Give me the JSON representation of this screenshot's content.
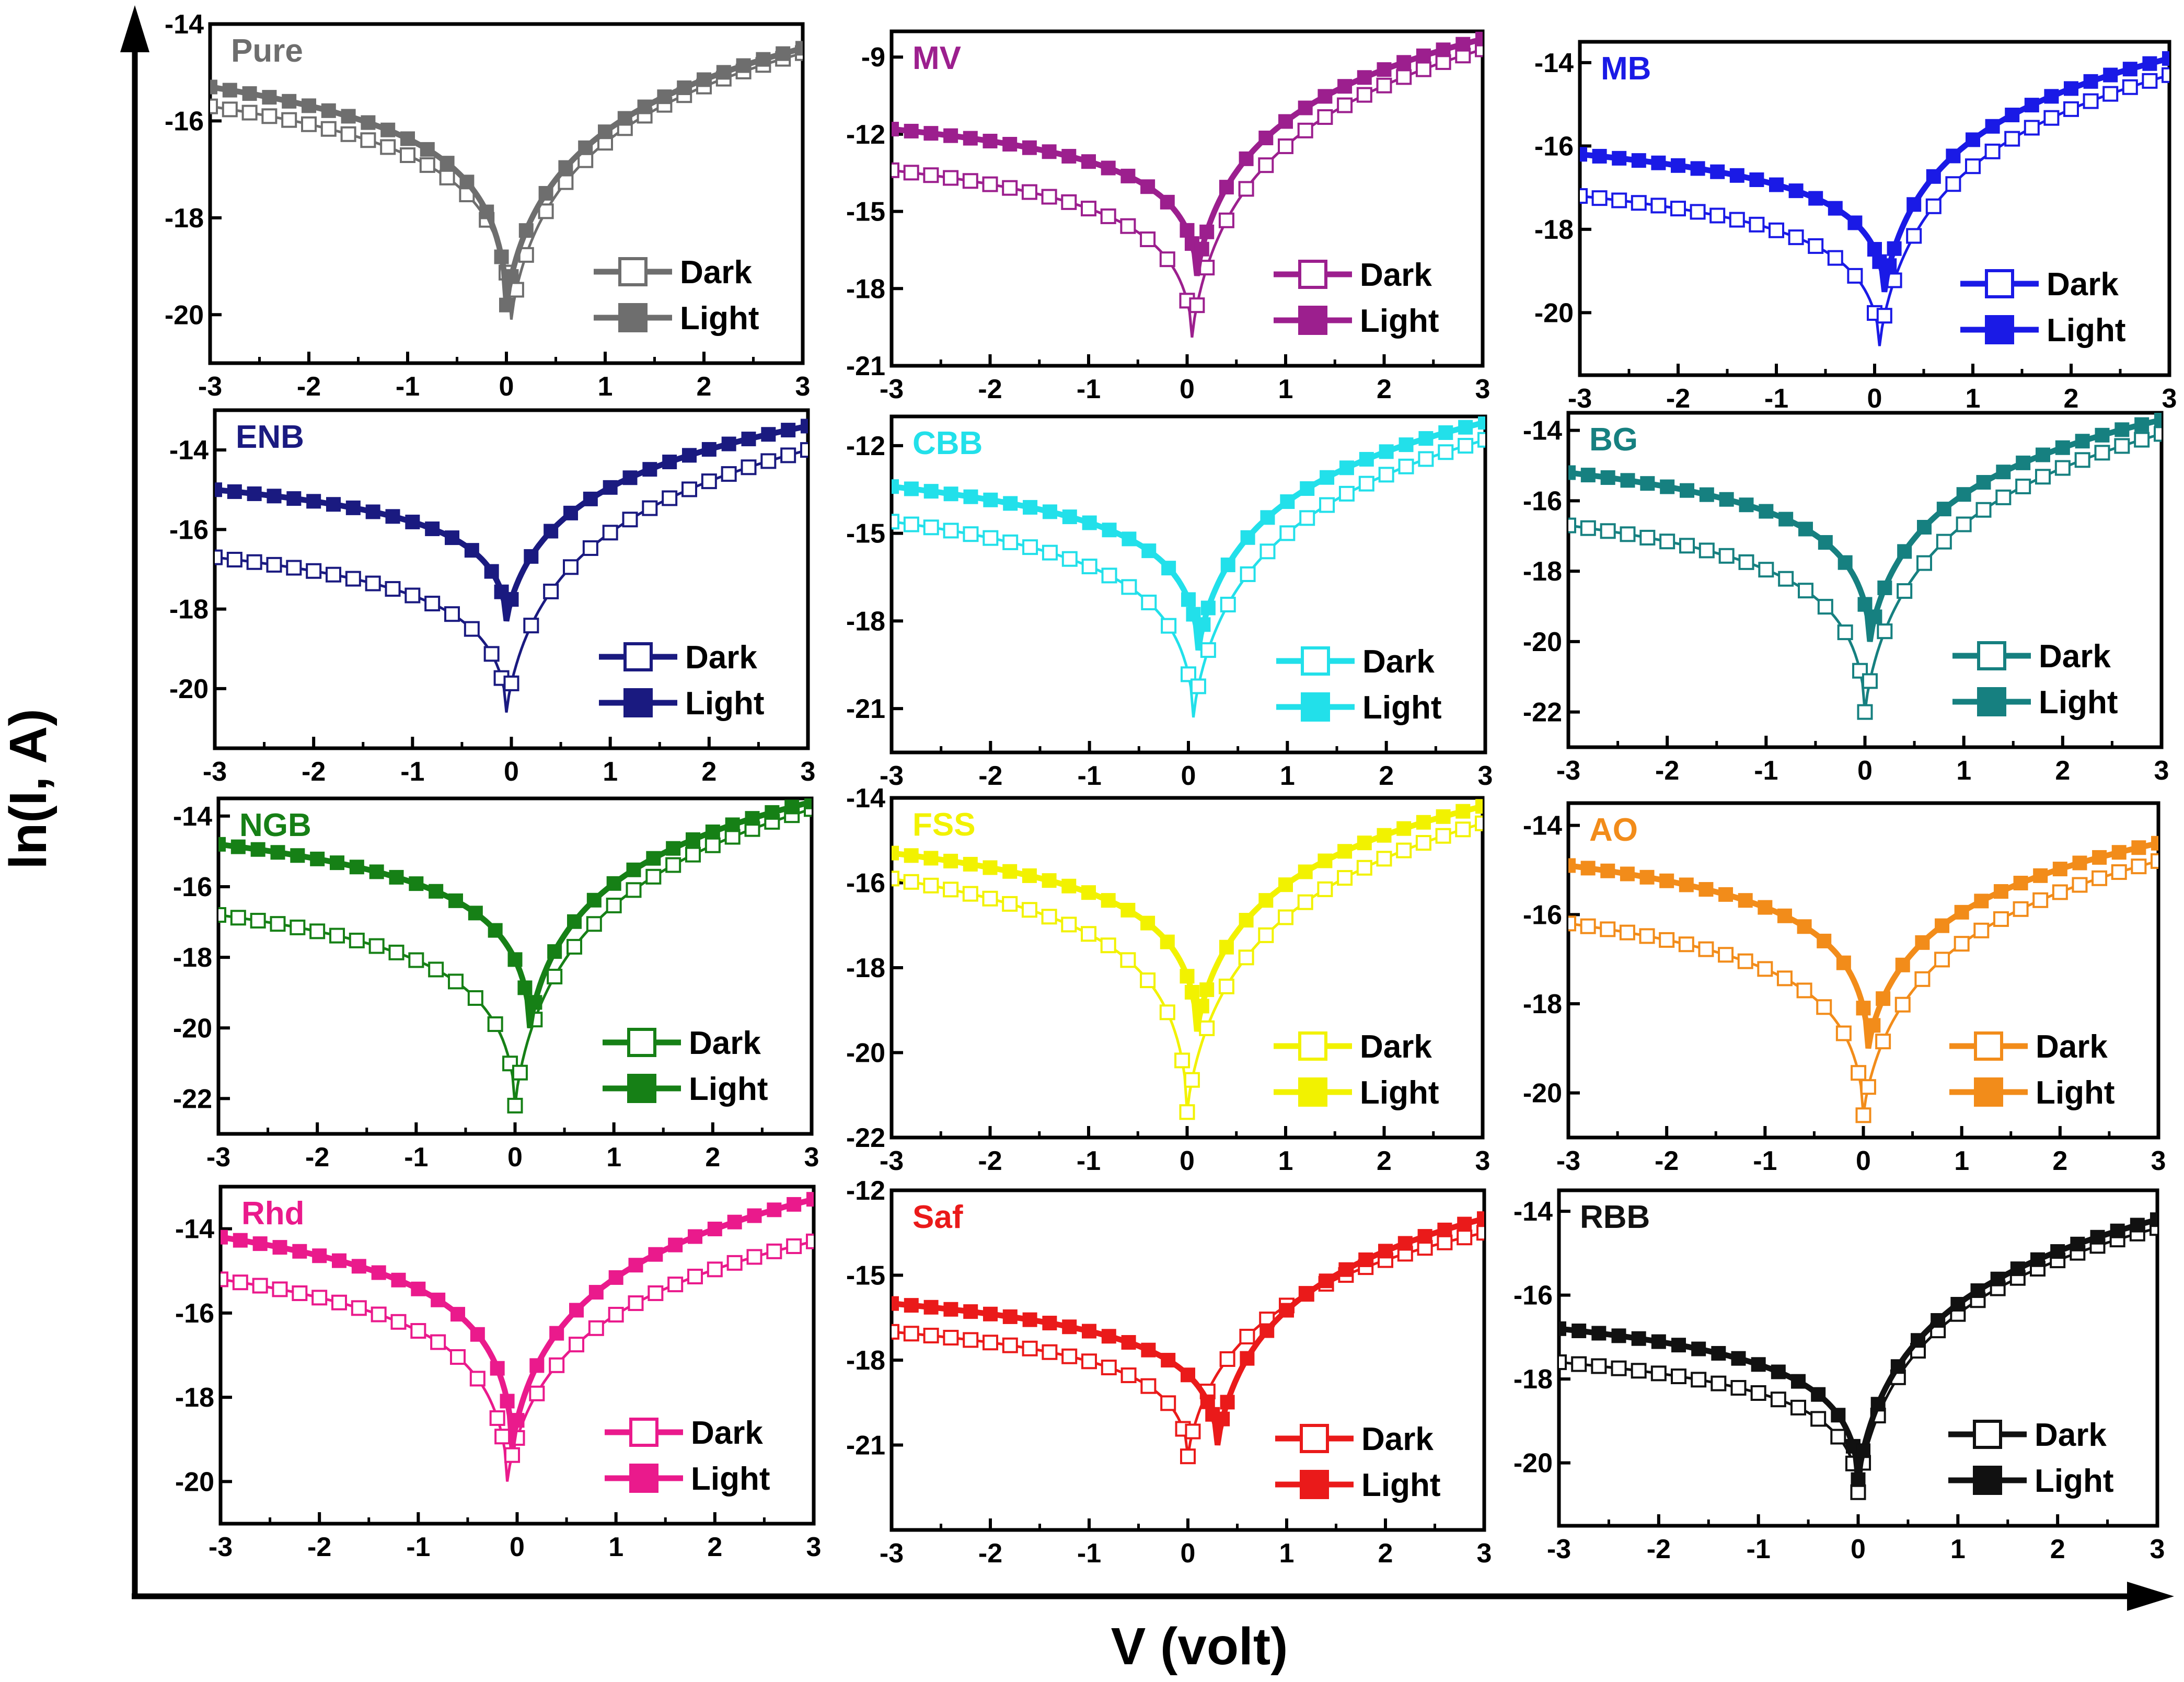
{
  "figure": {
    "xlabel": "V (volt)",
    "ylabel": "ln(I, A)"
  },
  "chart_data": [
    {
      "type": "line",
      "title": "Pure",
      "color": "#6e6e6e",
      "xlim": [
        -3,
        3
      ],
      "ylim": [
        -21,
        -14
      ],
      "yticks": [
        -20,
        -18,
        -16,
        -14
      ],
      "xticks": [
        -3,
        -2,
        -1,
        0,
        1,
        2,
        3
      ],
      "xlabel": "V (volt)",
      "ylabel": "ln(I, A)",
      "legend": "bottom-right",
      "series": [
        {
          "name": "Dark",
          "marker": "open-square",
          "v0": 0.05,
          "ymin": -20.1,
          "yleft": -15.7,
          "yright": -14.6
        },
        {
          "name": "Light",
          "marker": "filled-square",
          "v0": 0.0,
          "ymin": -19.8,
          "yleft": -15.3,
          "yright": -14.5
        }
      ]
    },
    {
      "type": "line",
      "title": "MV",
      "color": "#9c1f8e",
      "xlim": [
        -3,
        3
      ],
      "ylim": [
        -21,
        -8
      ],
      "yticks": [
        -21,
        -18,
        -15,
        -12,
        -9
      ],
      "xticks": [
        -3,
        -2,
        -1,
        0,
        1,
        2,
        3
      ],
      "xlabel": "V (volt)",
      "ylabel": "ln(I, A)",
      "legend": "bottom-right",
      "series": [
        {
          "name": "Dark",
          "marker": "open-square",
          "v0": 0.05,
          "ymin": -19.9,
          "yleft": -13.4,
          "yright": -8.7
        },
        {
          "name": "Light",
          "marker": "filled-square",
          "v0": 0.1,
          "ymin": -17.5,
          "yleft": -11.8,
          "yright": -8.3
        }
      ]
    },
    {
      "type": "line",
      "title": "MB",
      "color": "#1a1ae6",
      "xlim": [
        -3,
        3
      ],
      "ylim": [
        -21.5,
        -13.5
      ],
      "yticks": [
        -20,
        -18,
        -16,
        -14
      ],
      "xticks": [
        -3,
        -2,
        -1,
        0,
        1,
        2,
        3
      ],
      "xlabel": "V (volt)",
      "ylabel": "ln(I, A)",
      "legend": "bottom-right",
      "series": [
        {
          "name": "Dark",
          "marker": "open-square",
          "v0": 0.05,
          "ymin": -20.8,
          "yleft": -17.2,
          "yright": -14.3
        },
        {
          "name": "Light",
          "marker": "filled-square",
          "v0": 0.1,
          "ymin": -19.5,
          "yleft": -16.2,
          "yright": -13.9
        }
      ]
    },
    {
      "type": "line",
      "title": "ENB",
      "color": "#1a1a80",
      "xlim": [
        -3,
        3
      ],
      "ylim": [
        -21.5,
        -13
      ],
      "yticks": [
        -20,
        -18,
        -16,
        -14
      ],
      "xticks": [
        -3,
        -2,
        -1,
        0,
        1,
        2,
        3
      ],
      "xlabel": "V (volt)",
      "ylabel": "ln(I, A)",
      "legend": "bottom-right",
      "series": [
        {
          "name": "Dark",
          "marker": "open-square",
          "v0": -0.05,
          "ymin": -20.6,
          "yleft": -16.7,
          "yright": -14.0
        },
        {
          "name": "Light",
          "marker": "filled-square",
          "v0": -0.05,
          "ymin": -18.3,
          "yleft": -15.0,
          "yright": -13.4
        }
      ]
    },
    {
      "type": "line",
      "title": "CBB",
      "color": "#22e0ea",
      "xlim": [
        -3,
        3
      ],
      "ylim": [
        -22.5,
        -11
      ],
      "yticks": [
        -21,
        -18,
        -15,
        -12
      ],
      "xticks": [
        -3,
        -2,
        -1,
        0,
        1,
        2,
        3
      ],
      "xlabel": "V (volt)",
      "ylabel": "ln(I, A)",
      "legend": "bottom-right",
      "series": [
        {
          "name": "Dark",
          "marker": "open-square",
          "v0": 0.05,
          "ymin": -21.3,
          "yleft": -14.6,
          "yright": -11.8
        },
        {
          "name": "Light",
          "marker": "filled-square",
          "v0": 0.1,
          "ymin": -19.0,
          "yleft": -13.4,
          "yright": -11.2
        }
      ]
    },
    {
      "type": "line",
      "title": "BG",
      "color": "#168080",
      "xlim": [
        -3,
        3
      ],
      "ylim": [
        -23,
        -13.5
      ],
      "yticks": [
        -22,
        -20,
        -18,
        -16,
        -14
      ],
      "xticks": [
        -3,
        -2,
        -1,
        0,
        1,
        2,
        3
      ],
      "xlabel": "V (volt)",
      "ylabel": "ln(I, A)",
      "legend": "bottom-right",
      "series": [
        {
          "name": "Dark",
          "marker": "open-square",
          "v0": 0.0,
          "ymin": -22.0,
          "yleft": -16.7,
          "yright": -14.1
        },
        {
          "name": "Light",
          "marker": "filled-square",
          "v0": 0.05,
          "ymin": -20.0,
          "yleft": -15.2,
          "yright": -13.7
        }
      ]
    },
    {
      "type": "line",
      "title": "NGB",
      "color": "#168016",
      "xlim": [
        -3,
        3
      ],
      "ylim": [
        -23,
        -13.5
      ],
      "yticks": [
        -22,
        -20,
        -18,
        -16,
        -14
      ],
      "xticks": [
        -3,
        -2,
        -1,
        0,
        1,
        2,
        3
      ],
      "xlabel": "V (volt)",
      "ylabel": "ln(I, A)",
      "legend": "bottom-right",
      "series": [
        {
          "name": "Dark",
          "marker": "open-square",
          "v0": 0.0,
          "ymin": -22.2,
          "yleft": -16.8,
          "yright": -13.8
        },
        {
          "name": "Light",
          "marker": "filled-square",
          "v0": 0.15,
          "ymin": -20.0,
          "yleft": -14.8,
          "yright": -13.6
        }
      ]
    },
    {
      "type": "line",
      "title": "FSS",
      "color": "#f2f200",
      "xlim": [
        -3,
        3
      ],
      "ylim": [
        -22,
        -14
      ],
      "yticks": [
        -22,
        -20,
        -18,
        -16,
        -14
      ],
      "xticks": [
        -3,
        -2,
        -1,
        0,
        1,
        2,
        3
      ],
      "xlabel": "V (volt)",
      "ylabel": "ln(I, A)",
      "legend": "bottom-right",
      "series": [
        {
          "name": "Dark",
          "marker": "open-square",
          "v0": 0.0,
          "ymin": -21.4,
          "yleft": -15.9,
          "yright": -14.6
        },
        {
          "name": "Light",
          "marker": "filled-square",
          "v0": 0.1,
          "ymin": -19.5,
          "yleft": -15.3,
          "yright": -14.2
        }
      ]
    },
    {
      "type": "line",
      "title": "AO",
      "color": "#f28c1a",
      "xlim": [
        -3,
        3
      ],
      "ylim": [
        -21,
        -13.5
      ],
      "yticks": [
        -20,
        -18,
        -16,
        -14
      ],
      "xticks": [
        -3,
        -2,
        -1,
        0,
        1,
        2,
        3
      ],
      "xlabel": "V (volt)",
      "ylabel": "ln(I, A)",
      "legend": "bottom-right",
      "series": [
        {
          "name": "Dark",
          "marker": "open-square",
          "v0": 0.0,
          "ymin": -20.5,
          "yleft": -16.2,
          "yright": -14.8
        },
        {
          "name": "Light",
          "marker": "filled-square",
          "v0": 0.05,
          "ymin": -19.0,
          "yleft": -14.9,
          "yright": -14.4
        }
      ]
    },
    {
      "type": "line",
      "title": "Rhd",
      "color": "#ea1a8c",
      "xlim": [
        -3,
        3
      ],
      "ylim": [
        -21,
        -13
      ],
      "yticks": [
        -20,
        -18,
        -16,
        -14
      ],
      "xticks": [
        -3,
        -2,
        -1,
        0,
        1,
        2,
        3
      ],
      "xlabel": "V (volt)",
      "ylabel": "ln(I, A)",
      "legend": "bottom-right",
      "series": [
        {
          "name": "Dark",
          "marker": "open-square",
          "v0": -0.1,
          "ymin": -20.0,
          "yleft": -15.2,
          "yright": -14.3
        },
        {
          "name": "Light",
          "marker": "filled-square",
          "v0": -0.05,
          "ymin": -19.2,
          "yleft": -14.2,
          "yright": -13.3
        }
      ]
    },
    {
      "type": "line",
      "title": "Saf",
      "color": "#ea1a1a",
      "xlim": [
        -3,
        3
      ],
      "ylim": [
        -24,
        -12
      ],
      "yticks": [
        -21,
        -18,
        -15,
        -12
      ],
      "xticks": [
        -3,
        -2,
        -1,
        0,
        1,
        2,
        3
      ],
      "xlabel": "V (volt)",
      "ylabel": "ln(I, A)",
      "legend": "bottom-right",
      "series": [
        {
          "name": "Dark",
          "marker": "open-square",
          "v0": 0.0,
          "ymin": -21.4,
          "yleft": -17.0,
          "yright": -13.5
        },
        {
          "name": "Light",
          "marker": "filled-square",
          "v0": 0.3,
          "ymin": -21.0,
          "yleft": -16.0,
          "yright": -13.0
        }
      ]
    },
    {
      "type": "line",
      "title": "RBB",
      "color": "#111111",
      "xlim": [
        -3,
        3
      ],
      "ylim": [
        -21.5,
        -13.5
      ],
      "yticks": [
        -20,
        -18,
        -16,
        -14
      ],
      "xticks": [
        -3,
        -2,
        -1,
        0,
        1,
        2,
        3
      ],
      "xlabel": "V (volt)",
      "ylabel": "ln(I, A)",
      "legend": "bottom-right",
      "series": [
        {
          "name": "Dark",
          "marker": "open-square",
          "v0": 0.0,
          "ymin": -20.7,
          "yleft": -17.6,
          "yright": -14.4
        },
        {
          "name": "Light",
          "marker": "filled-square",
          "v0": 0.0,
          "ymin": -20.4,
          "yleft": -16.8,
          "yright": -14.2
        }
      ]
    }
  ]
}
